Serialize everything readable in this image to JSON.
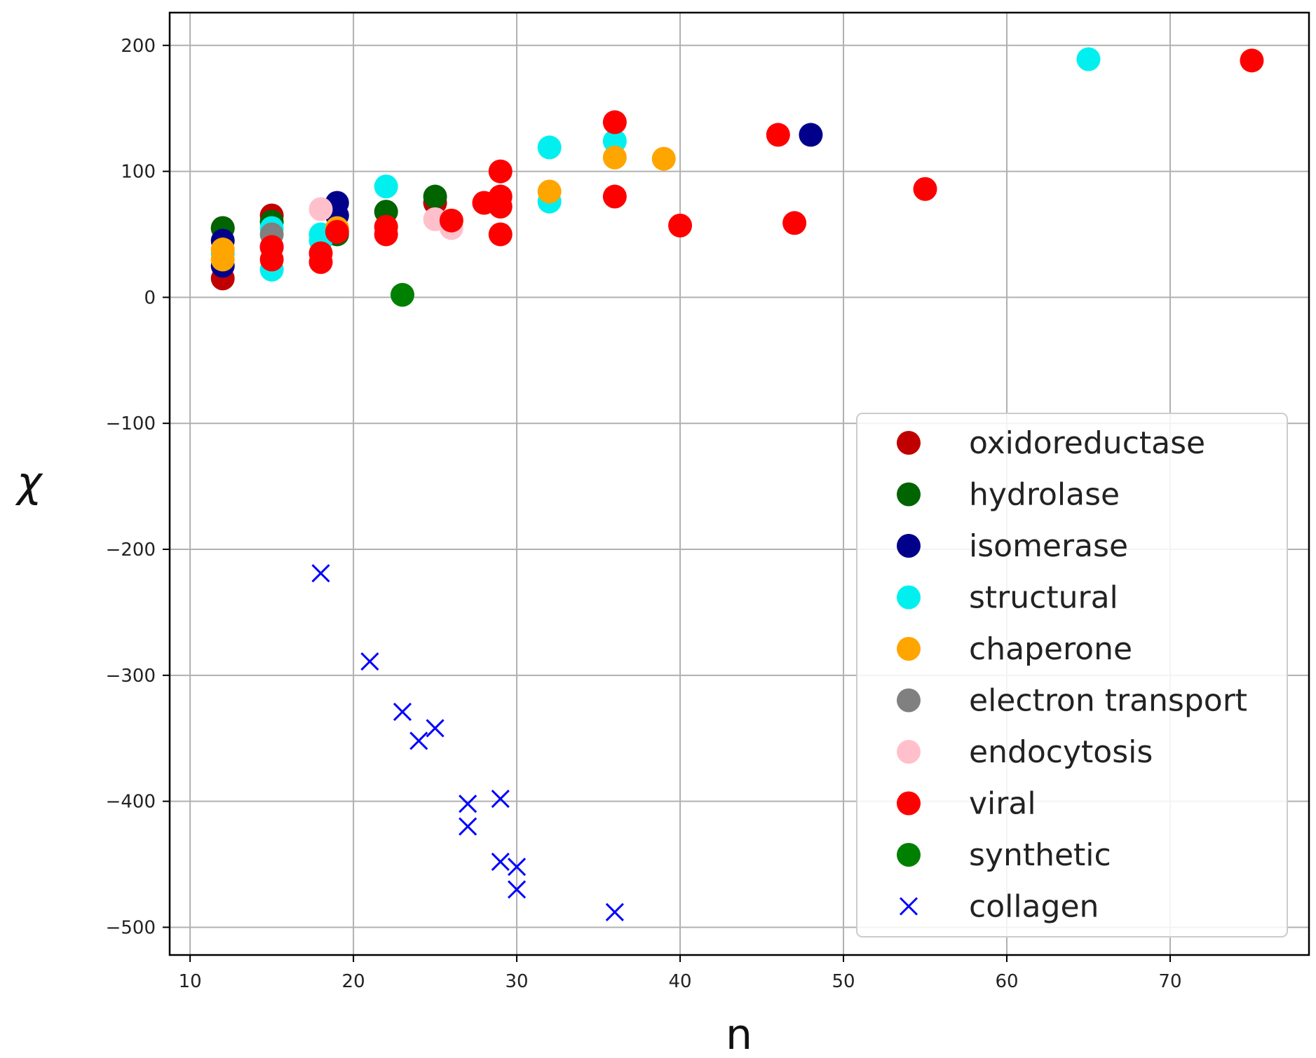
{
  "chart_data": {
    "type": "scatter",
    "title": "",
    "xlabel": "n",
    "ylabel": "χ",
    "xlim": [
      8.75,
      78.5
    ],
    "ylim": [
      -522,
      226
    ],
    "xticks": [
      10,
      20,
      30,
      40,
      50,
      60,
      70
    ],
    "yticks": [
      -500,
      -400,
      -300,
      -200,
      -100,
      0,
      100,
      200
    ],
    "grid": true,
    "legend_position": "right",
    "series": [
      {
        "name": "oxidoreductase",
        "color": "#c00000",
        "marker": "circle",
        "points": [
          [
            12,
            15
          ],
          [
            12,
            55
          ],
          [
            15,
            65
          ],
          [
            25,
            75
          ]
        ]
      },
      {
        "name": "hydrolase",
        "color": "#006400",
        "marker": "circle",
        "points": [
          [
            12,
            55
          ],
          [
            15,
            60
          ],
          [
            19,
            50
          ],
          [
            22,
            68
          ],
          [
            25,
            80
          ]
        ]
      },
      {
        "name": "isomerase",
        "color": "#00008b",
        "marker": "circle",
        "points": [
          [
            12,
            25
          ],
          [
            12,
            45
          ],
          [
            15,
            40
          ],
          [
            19,
            75
          ],
          [
            19,
            65
          ],
          [
            48,
            129
          ]
        ]
      },
      {
        "name": "structural",
        "color": "#00f0f0",
        "marker": "circle",
        "points": [
          [
            12,
            35
          ],
          [
            15,
            22
          ],
          [
            15,
            55
          ],
          [
            18,
            45
          ],
          [
            18,
            50
          ],
          [
            22,
            88
          ],
          [
            32,
            76
          ],
          [
            32,
            119
          ],
          [
            36,
            124
          ],
          [
            65,
            189
          ]
        ]
      },
      {
        "name": "chaperone",
        "color": "#ffa500",
        "marker": "circle",
        "points": [
          [
            12,
            30
          ],
          [
            12,
            38
          ],
          [
            19,
            55
          ],
          [
            32,
            84
          ],
          [
            36,
            111
          ],
          [
            39,
            110
          ]
        ]
      },
      {
        "name": "electron transport",
        "color": "#808080",
        "marker": "circle",
        "points": [
          [
            15,
            50
          ]
        ]
      },
      {
        "name": "endocytosis",
        "color": "#ffc0cb",
        "marker": "circle",
        "points": [
          [
            18,
            70
          ],
          [
            25,
            62
          ],
          [
            26,
            55
          ]
        ]
      },
      {
        "name": "viral",
        "color": "#ff0000",
        "marker": "circle",
        "points": [
          [
            15,
            30
          ],
          [
            15,
            40
          ],
          [
            18,
            28
          ],
          [
            18,
            35
          ],
          [
            19,
            52
          ],
          [
            22,
            50
          ],
          [
            22,
            56
          ],
          [
            26,
            61
          ],
          [
            28,
            75
          ],
          [
            29,
            100
          ],
          [
            29,
            80
          ],
          [
            29,
            72
          ],
          [
            29,
            50
          ],
          [
            36,
            139
          ],
          [
            36,
            80
          ],
          [
            40,
            57
          ],
          [
            46,
            129
          ],
          [
            47,
            59
          ],
          [
            55,
            86
          ],
          [
            75,
            188
          ]
        ]
      },
      {
        "name": "synthetic",
        "color": "#008000",
        "marker": "circle",
        "points": [
          [
            23,
            2
          ]
        ]
      },
      {
        "name": "collagen",
        "color": "#0000ff",
        "marker": "x",
        "points": [
          [
            18,
            -219
          ],
          [
            21,
            -289
          ],
          [
            23,
            -329
          ],
          [
            24,
            -352
          ],
          [
            25,
            -342
          ],
          [
            27,
            -402
          ],
          [
            27,
            -420
          ],
          [
            29,
            -398
          ],
          [
            29,
            -448
          ],
          [
            30,
            -452
          ],
          [
            30,
            -470
          ],
          [
            36,
            -488
          ]
        ]
      }
    ]
  }
}
